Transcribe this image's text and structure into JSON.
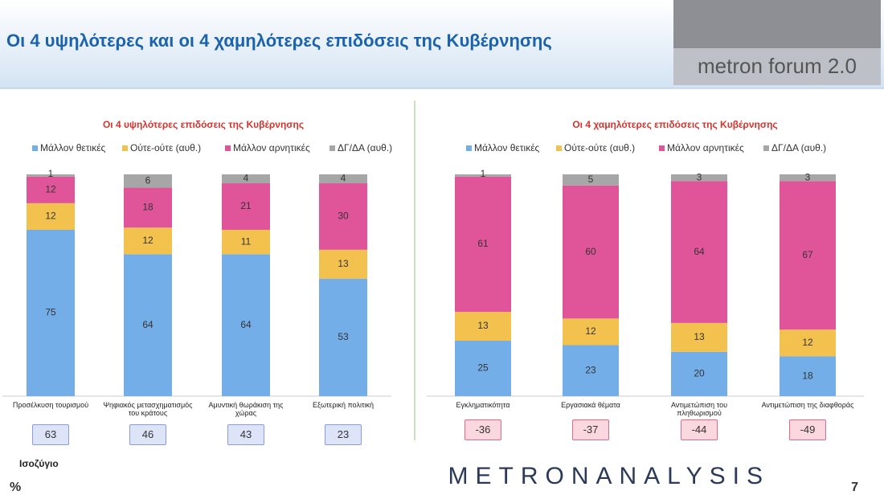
{
  "header": {
    "title": "Οι 4 υψηλότερες και οι 4 χαμηλότερες επιδόσεις της Κυβέρνησης",
    "logo": "metron forum 2.0"
  },
  "chart_data": [
    {
      "type": "bar",
      "stacked": true,
      "title": "Οι 4 υψηλότερες επιδόσεις της Κυβέρνησης",
      "categories": [
        "Προσέλκυση τουρισμού",
        "Ψηφιακός μετασχηματισμός του κράτους",
        "Αμυντική θωράκιση της χώρας",
        "Εξωτερική πολιτική"
      ],
      "ylim": [
        0,
        100
      ],
      "series": [
        {
          "name": "Μάλλον θετικές",
          "color": "#74aee8",
          "values": [
            75,
            64,
            64,
            53
          ]
        },
        {
          "name": "Ούτε-ούτε  (αυθ.)",
          "color": "#f2c14e",
          "values": [
            12,
            12,
            11,
            13
          ]
        },
        {
          "name": "Μάλλον αρνητικές",
          "color": "#e0559a",
          "values": [
            12,
            18,
            21,
            30
          ]
        },
        {
          "name": "ΔΓ/ΔΑ (αυθ.)",
          "color": "#a6a6a6",
          "values": [
            1,
            6,
            4,
            4
          ]
        }
      ],
      "balance": [
        63,
        46,
        43,
        23
      ]
    },
    {
      "type": "bar",
      "stacked": true,
      "title": "Οι 4 χαμηλότερες επιδόσεις της Κυβέρνησης",
      "categories": [
        "Εγκληματικότητα",
        "Εργασιακά θέματα",
        "Αντιμετώπιση του πληθωρισμού",
        "Αντιμετώπιση της διαφθοράς"
      ],
      "ylim": [
        0,
        100
      ],
      "series": [
        {
          "name": "Μάλλον θετικές",
          "color": "#74aee8",
          "values": [
            25,
            23,
            20,
            18
          ]
        },
        {
          "name": "Ούτε-ούτε  (αυθ.)",
          "color": "#f2c14e",
          "values": [
            13,
            12,
            13,
            12
          ]
        },
        {
          "name": "Μάλλον αρνητικές",
          "color": "#e0559a",
          "values": [
            61,
            60,
            64,
            67
          ]
        },
        {
          "name": "ΔΓ/ΔΑ (αυθ.)",
          "color": "#a6a6a6",
          "values": [
            1,
            5,
            3,
            3
          ]
        }
      ],
      "balance": [
        -36,
        -37,
        -44,
        -49
      ]
    }
  ],
  "footer": {
    "balance_label": "Ισοζύγιο",
    "unit": "%",
    "brand": "METRONANALYSIS",
    "page": "7"
  }
}
